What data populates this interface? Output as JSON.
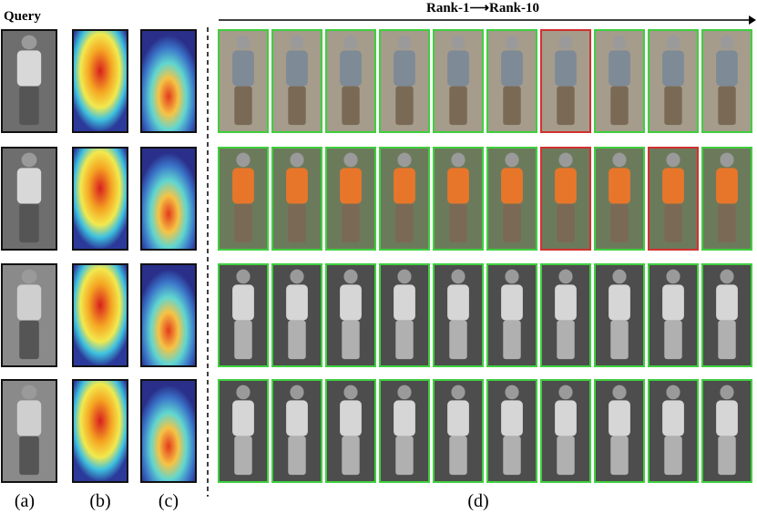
{
  "figure": {
    "query_title": "Query",
    "rank_title": "Rank-1⟶Rank-10",
    "panel_labels": [
      "(a)",
      "(b)",
      "(c)",
      "(d)"
    ],
    "rows": [
      {
        "modality": "visible",
        "borders": [
          "#3fcf3f",
          "#3fcf3f",
          "#3fcf3f",
          "#3fcf3f",
          "#3fcf3f",
          "#3fcf3f",
          "#d23030",
          "#3fcf3f",
          "#3fcf3f",
          "#3fcf3f"
        ]
      },
      {
        "modality": "visible",
        "borders": [
          "#3fcf3f",
          "#3fcf3f",
          "#3fcf3f",
          "#3fcf3f",
          "#3fcf3f",
          "#3fcf3f",
          "#d23030",
          "#3fcf3f",
          "#d23030",
          "#3fcf3f"
        ]
      },
      {
        "modality": "infrared",
        "borders": [
          "#3fcf3f",
          "#3fcf3f",
          "#3fcf3f",
          "#3fcf3f",
          "#3fcf3f",
          "#3fcf3f",
          "#3fcf3f",
          "#3fcf3f",
          "#3fcf3f",
          "#3fcf3f"
        ]
      },
      {
        "modality": "infrared",
        "borders": [
          "#3fcf3f",
          "#3fcf3f",
          "#3fcf3f",
          "#3fcf3f",
          "#3fcf3f",
          "#3fcf3f",
          "#3fcf3f",
          "#3fcf3f",
          "#3fcf3f",
          "#3fcf3f"
        ]
      }
    ]
  }
}
